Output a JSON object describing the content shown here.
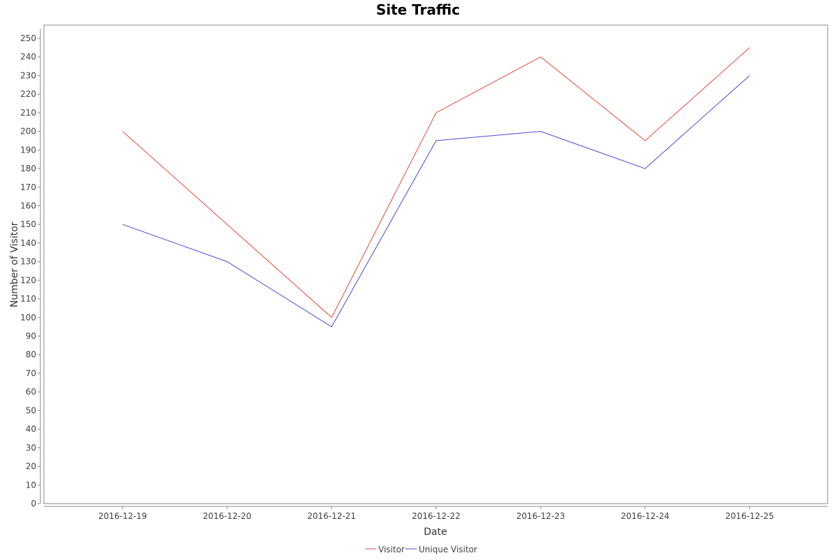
{
  "chart_data": {
    "type": "line",
    "title": "Site Traffic",
    "xlabel": "Date",
    "ylabel": "Number of Visitor",
    "categories": [
      "2016-12-19",
      "2016-12-20",
      "2016-12-21",
      "2016-12-22",
      "2016-12-23",
      "2016-12-24",
      "2016-12-25"
    ],
    "ylim": [
      0,
      255
    ],
    "yticks": [
      0,
      10,
      20,
      30,
      40,
      50,
      60,
      70,
      80,
      90,
      100,
      110,
      120,
      130,
      140,
      150,
      160,
      170,
      180,
      190,
      200,
      210,
      220,
      230,
      240,
      250
    ],
    "grid": false,
    "legend_position": "bottom",
    "series": [
      {
        "name": "Visitor",
        "color": "#e8493a",
        "values": [
          200,
          150,
          100,
          210,
          240,
          195,
          245
        ]
      },
      {
        "name": "Unique Visitor",
        "color": "#4848d8",
        "values": [
          150,
          130,
          95,
          195,
          200,
          180,
          230
        ]
      }
    ]
  }
}
